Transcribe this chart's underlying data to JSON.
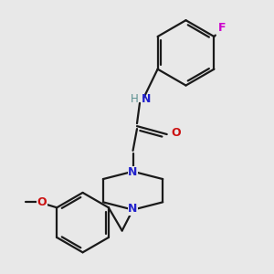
{
  "background_color": "#e8e8e8",
  "bond_color": "#1a1a1a",
  "N_color": "#2222cc",
  "O_color": "#cc1111",
  "F_color": "#cc00cc",
  "H_color": "#5a9090",
  "line_width": 1.6,
  "figsize": [
    3.0,
    3.0
  ],
  "dpi": 100,
  "xlim": [
    0.0,
    10.0
  ],
  "ylim": [
    0.0,
    10.0
  ]
}
